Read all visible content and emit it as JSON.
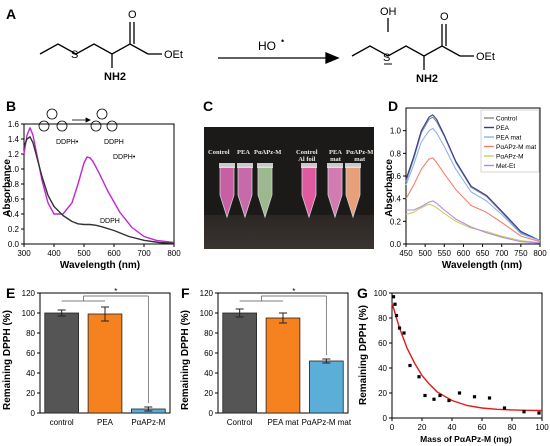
{
  "panel_letters": {
    "A": "A",
    "B": "B",
    "C": "C",
    "D": "D",
    "E": "E",
    "F": "F",
    "G": "G"
  },
  "panel_a": {
    "left_molecule": {
      "groups": [
        "O",
        "S",
        "OEt",
        "NH2"
      ]
    },
    "reagent": "HO",
    "reagent_radical": "•",
    "right_molecule": {
      "groups": [
        "OH",
        "S",
        "O",
        "OEt",
        "NH2"
      ]
    }
  },
  "panel_b": {
    "scheme_labels": [
      "DDPH•",
      "DDPH"
    ],
    "curve_labels": [
      "DDPH•",
      "DDPH"
    ],
    "colors": {
      "dpph_radical": "#c026d3",
      "dpph": "#333333"
    }
  },
  "panel_c": {
    "tube_labels": [
      "Control",
      "PEA",
      "PαAPz-M",
      "Control\nAl foil",
      "PEA\nmat",
      "PαAPz-M\nmat"
    ]
  },
  "colors": {
    "control": "#555555",
    "pea": "#f5811f",
    "paapz": "#5aaed8",
    "fit": "#e31a1c"
  },
  "chart_data": [
    {
      "id": "B",
      "type": "line",
      "xlabel": "Wavelength (nm)",
      "ylabel": "Absorbance",
      "xlim": [
        300,
        800
      ],
      "ylim": [
        0,
        1.6
      ],
      "xticks": [
        300,
        400,
        500,
        600,
        700,
        800
      ],
      "yticks": [
        0.0,
        0.2,
        0.4,
        0.6,
        0.8,
        1.0,
        1.2,
        1.4,
        1.6
      ],
      "series": [
        {
          "name": "DDPH•",
          "color": "#c026d3",
          "x": [
            300,
            310,
            320,
            330,
            340,
            360,
            380,
            400,
            430,
            460,
            480,
            500,
            510,
            520,
            530,
            550,
            580,
            620,
            660,
            700,
            740,
            780,
            800
          ],
          "y": [
            1.2,
            1.45,
            1.55,
            1.45,
            1.25,
            0.85,
            0.55,
            0.4,
            0.4,
            0.55,
            0.8,
            1.08,
            1.16,
            1.15,
            1.1,
            0.95,
            0.7,
            0.42,
            0.22,
            0.1,
            0.05,
            0.03,
            0.02
          ]
        },
        {
          "name": "DDPH",
          "color": "#333333",
          "x": [
            300,
            310,
            320,
            330,
            340,
            360,
            380,
            400,
            430,
            460,
            480,
            500,
            520,
            540,
            560,
            600,
            650,
            700,
            750,
            800
          ],
          "y": [
            1.3,
            1.4,
            1.43,
            1.35,
            1.2,
            0.9,
            0.65,
            0.5,
            0.38,
            0.3,
            0.27,
            0.26,
            0.26,
            0.25,
            0.23,
            0.18,
            0.1,
            0.05,
            0.02,
            0.01
          ]
        }
      ]
    },
    {
      "id": "D",
      "type": "line",
      "xlabel": "Wavelength (nm)",
      "ylabel": "Absorbance",
      "xlim": [
        450,
        800
      ],
      "ylim": [
        0,
        1.2
      ],
      "xticks": [
        450,
        500,
        550,
        600,
        650,
        700,
        750,
        800
      ],
      "yticks": [
        0.0,
        0.2,
        0.4,
        0.6,
        0.8,
        1.0
      ],
      "legend_position": "top-right",
      "series": [
        {
          "name": "Control",
          "color": "#888888",
          "x": [
            450,
            470,
            490,
            510,
            520,
            530,
            550,
            580,
            620,
            660,
            700,
            750,
            800
          ],
          "y": [
            0.55,
            0.75,
            0.98,
            1.1,
            1.12,
            1.08,
            0.95,
            0.72,
            0.5,
            0.42,
            0.28,
            0.1,
            0.03
          ]
        },
        {
          "name": "PEA",
          "color": "#2d3e9a",
          "x": [
            450,
            470,
            490,
            510,
            520,
            530,
            550,
            580,
            620,
            660,
            700,
            750,
            800
          ],
          "y": [
            0.57,
            0.77,
            1.0,
            1.12,
            1.14,
            1.1,
            0.96,
            0.73,
            0.51,
            0.43,
            0.29,
            0.11,
            0.03
          ]
        },
        {
          "name": "PEA mat",
          "color": "#8fb3e8",
          "x": [
            450,
            470,
            490,
            510,
            520,
            530,
            550,
            580,
            620,
            660,
            700,
            750,
            800
          ],
          "y": [
            0.52,
            0.7,
            0.9,
            1.0,
            1.02,
            0.98,
            0.86,
            0.66,
            0.46,
            0.38,
            0.26,
            0.09,
            0.03
          ]
        },
        {
          "name": "PαAPz-M mat",
          "color": "#f08070",
          "x": [
            450,
            470,
            490,
            510,
            520,
            530,
            550,
            580,
            620,
            660,
            700,
            750,
            800
          ],
          "y": [
            0.4,
            0.52,
            0.66,
            0.75,
            0.76,
            0.72,
            0.62,
            0.48,
            0.34,
            0.28,
            0.19,
            0.07,
            0.02
          ]
        },
        {
          "name": "PαAPz-M",
          "color": "#c8d060",
          "x": [
            450,
            470,
            490,
            510,
            520,
            530,
            550,
            580,
            620,
            660,
            700,
            750,
            800
          ],
          "y": [
            0.26,
            0.28,
            0.32,
            0.35,
            0.34,
            0.32,
            0.27,
            0.2,
            0.14,
            0.11,
            0.07,
            0.03,
            0.01
          ]
        },
        {
          "name": "Met-Et",
          "color": "#b28be0",
          "x": [
            450,
            470,
            490,
            510,
            520,
            530,
            550,
            580,
            620,
            660,
            700,
            750,
            800
          ],
          "y": [
            0.3,
            0.3,
            0.33,
            0.37,
            0.38,
            0.36,
            0.3,
            0.22,
            0.15,
            0.1,
            0.06,
            0.02,
            0.01
          ]
        }
      ]
    },
    {
      "id": "E",
      "type": "bar",
      "categories": [
        "control",
        "PEA",
        "PαAPz-M"
      ],
      "values": [
        100,
        99,
        4
      ],
      "errors": [
        3,
        7,
        2
      ],
      "ylabel": "Remaining DPPH (%)",
      "ylim": [
        0,
        120
      ],
      "yticks": [
        0,
        20,
        40,
        60,
        80,
        100,
        120
      ],
      "significance": "*"
    },
    {
      "id": "F",
      "type": "bar",
      "categories": [
        "Control",
        "PEA mat",
        "PαAPz-M mat"
      ],
      "values": [
        100,
        95,
        52
      ],
      "errors": [
        4,
        5,
        2
      ],
      "ylabel": "Remaining DPPH (%)",
      "ylim": [
        0,
        120
      ],
      "yticks": [
        0,
        20,
        40,
        60,
        80,
        100,
        120
      ],
      "significance": "*"
    },
    {
      "id": "G",
      "type": "scatter",
      "xlabel": "Mass of PαAPz-M (mg)",
      "ylabel": "Remaining DPPH (%)",
      "xlim": [
        0,
        100
      ],
      "ylim": [
        0,
        100
      ],
      "xticks": [
        0,
        20,
        40,
        60,
        80,
        100
      ],
      "yticks": [
        0,
        20,
        40,
        60,
        80,
        100
      ],
      "points": {
        "x": [
          1,
          2,
          3,
          5,
          8,
          12,
          18,
          22,
          28,
          32,
          38,
          45,
          55,
          65,
          75,
          88,
          98
        ],
        "y": [
          97,
          91,
          82,
          72,
          68,
          42,
          33,
          18,
          15,
          18,
          14,
          20,
          17,
          16,
          8,
          5,
          4
        ]
      },
      "fit": {
        "x": [
          0,
          5,
          10,
          15,
          20,
          25,
          30,
          40,
          50,
          60,
          70,
          80,
          90,
          100
        ],
        "y": [
          92,
          72,
          56,
          44,
          34,
          27,
          21,
          14,
          10,
          8,
          7,
          6.5,
          6.2,
          6
        ]
      }
    }
  ]
}
